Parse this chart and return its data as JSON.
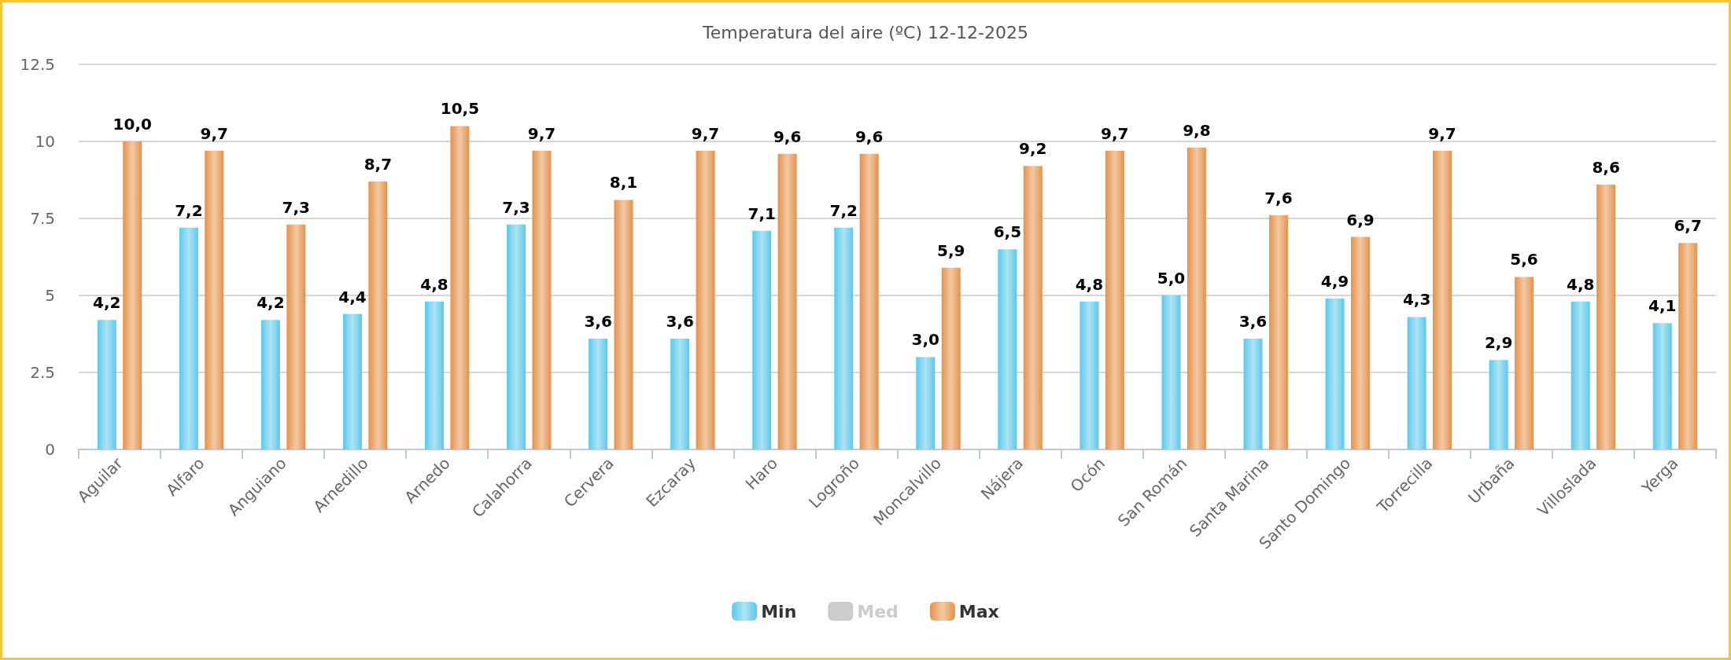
{
  "chart_data": {
    "type": "bar",
    "title": "Temperatura del aire (ºC) 12-12-2025",
    "categories": [
      "Aguilar",
      "Alfaro",
      "Anguiano",
      "Arnedillo",
      "Arnedo",
      "Calahorra",
      "Cervera",
      "Ezcaray",
      "Haro",
      "Logroño",
      "Moncalvillo",
      "Nájera",
      "Ocón",
      "San Román",
      "Santa Marina",
      "Santo Domingo",
      "Torrecilla",
      "Urbaña",
      "Villoslada",
      "Yerga"
    ],
    "series": [
      {
        "name": "Min",
        "color": "#5cc9ea",
        "values": [
          4.2,
          7.2,
          4.2,
          4.4,
          4.8,
          7.3,
          3.6,
          3.6,
          7.1,
          7.2,
          3.0,
          6.5,
          4.8,
          5.0,
          3.6,
          4.9,
          4.3,
          2.9,
          4.8,
          4.1
        ],
        "value_labels": [
          "4,2",
          "7,2",
          "4,2",
          "4,4",
          "4,8",
          "7,3",
          "3,6",
          "3,6",
          "7,1",
          "7,2",
          "3,0",
          "6,5",
          "4,8",
          "5,0",
          "3,6",
          "4,9",
          "4,3",
          "2,9",
          "4,8",
          "4,1"
        ]
      },
      {
        "name": "Med",
        "color": "#cccccc",
        "values": [
          null,
          null,
          null,
          null,
          null,
          null,
          null,
          null,
          null,
          null,
          null,
          null,
          null,
          null,
          null,
          null,
          null,
          null,
          null,
          null
        ]
      },
      {
        "name": "Max",
        "color": "#e5924a",
        "values": [
          10.0,
          9.7,
          7.3,
          8.7,
          10.5,
          9.7,
          8.1,
          9.7,
          9.6,
          9.6,
          5.9,
          9.2,
          9.7,
          9.8,
          7.6,
          6.9,
          9.7,
          5.6,
          8.6,
          6.7
        ],
        "value_labels": [
          "10,0",
          "9,7",
          "7,3",
          "8,7",
          "10,5",
          "9,7",
          "8,1",
          "9,7",
          "9,6",
          "9,6",
          "5,9",
          "9,2",
          "9,7",
          "9,8",
          "7,6",
          "6,9",
          "9,7",
          "5,6",
          "8,6",
          "6,7"
        ]
      }
    ],
    "ylim": [
      0,
      12.5
    ],
    "yticks": [
      0,
      2.5,
      5,
      7.5,
      10,
      12.5
    ],
    "grid": "y",
    "legend": "bottom"
  }
}
